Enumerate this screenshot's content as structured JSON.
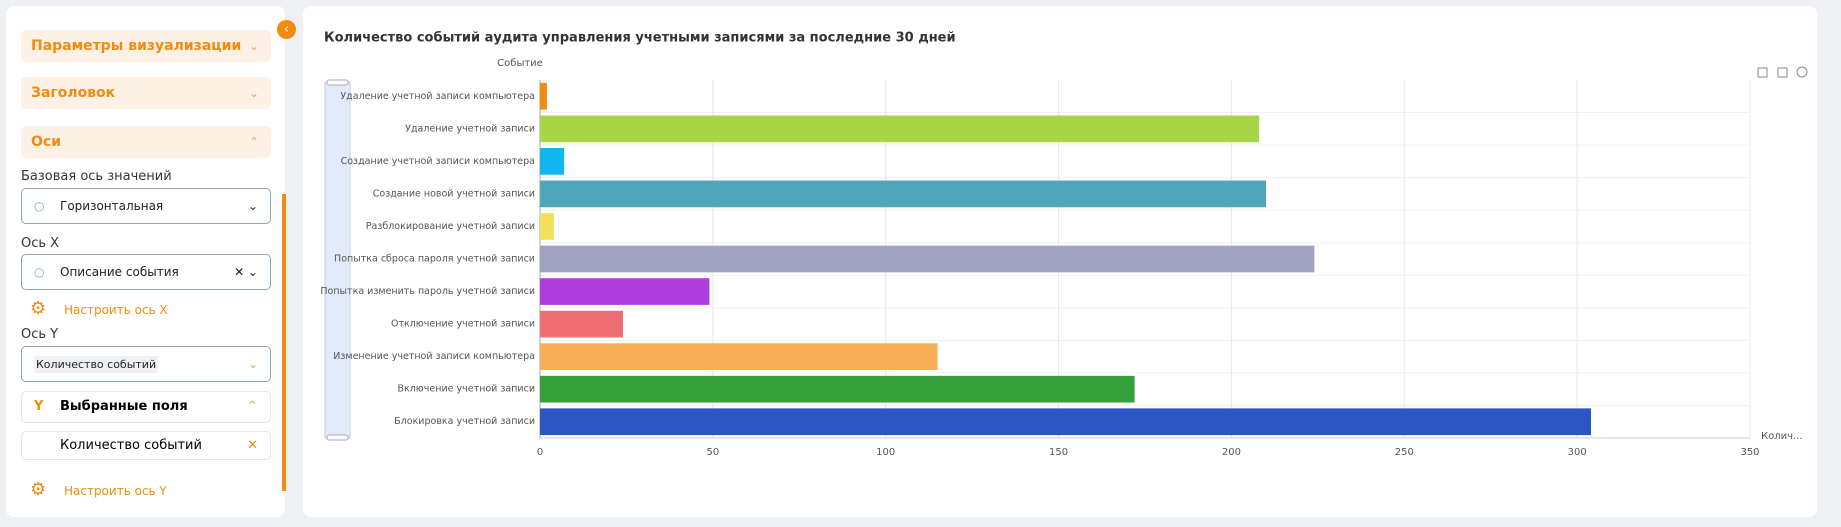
{
  "sidebar": {
    "sections": [
      "Параметры визуализации",
      "Заголовок",
      "Оси"
    ],
    "base_axis_label": "Базовая ось значений",
    "base_axis_value": "Горизонтальная",
    "x_axis_label": "Ось X",
    "x_axis_value": "Описание события",
    "x_axis_settings": "Настроить ось X",
    "y_axis_label": "Ось Y",
    "y_axis_tag": "Количество событий",
    "selected_fields_title": "Выбранные поля",
    "selected_field": "Количество событий",
    "y_axis_settings": "Настроить ось Y"
  },
  "chart_data": {
    "type": "bar",
    "orientation": "horizontal",
    "title": "Количество событий аудита управления учетными записями за последние 30 дней",
    "y_axis_label": "Событие",
    "x_axis_label": "Колич...",
    "categories": [
      "Удаление учетной записи компьютера",
      "Удаление учетной записи",
      "Создание учетной записи компьютера",
      "Создание новой учетной записи",
      "Разблокирование учетной записи",
      "Попытка сброса пароля учетной записи",
      "Попытка изменить пароль учетной записи",
      "Отключение учетной записи",
      "Изменение учетной записи компьютера",
      "Включение учетной записи",
      "Блокировка учетной записи"
    ],
    "values": [
      2,
      208,
      7,
      210,
      4,
      224,
      49,
      24,
      115,
      172,
      304
    ],
    "colors": [
      "#f28c0f",
      "#a6d646",
      "#12b5ef",
      "#4ea6b8",
      "#f2df5a",
      "#a0a3bf",
      "#b03ede",
      "#ee6e73",
      "#f7ae57",
      "#36a13a",
      "#2d56c5"
    ],
    "xlim": [
      0,
      350
    ],
    "xticks": [
      0,
      50,
      100,
      150,
      200,
      250,
      300,
      350
    ],
    "grid": true
  }
}
